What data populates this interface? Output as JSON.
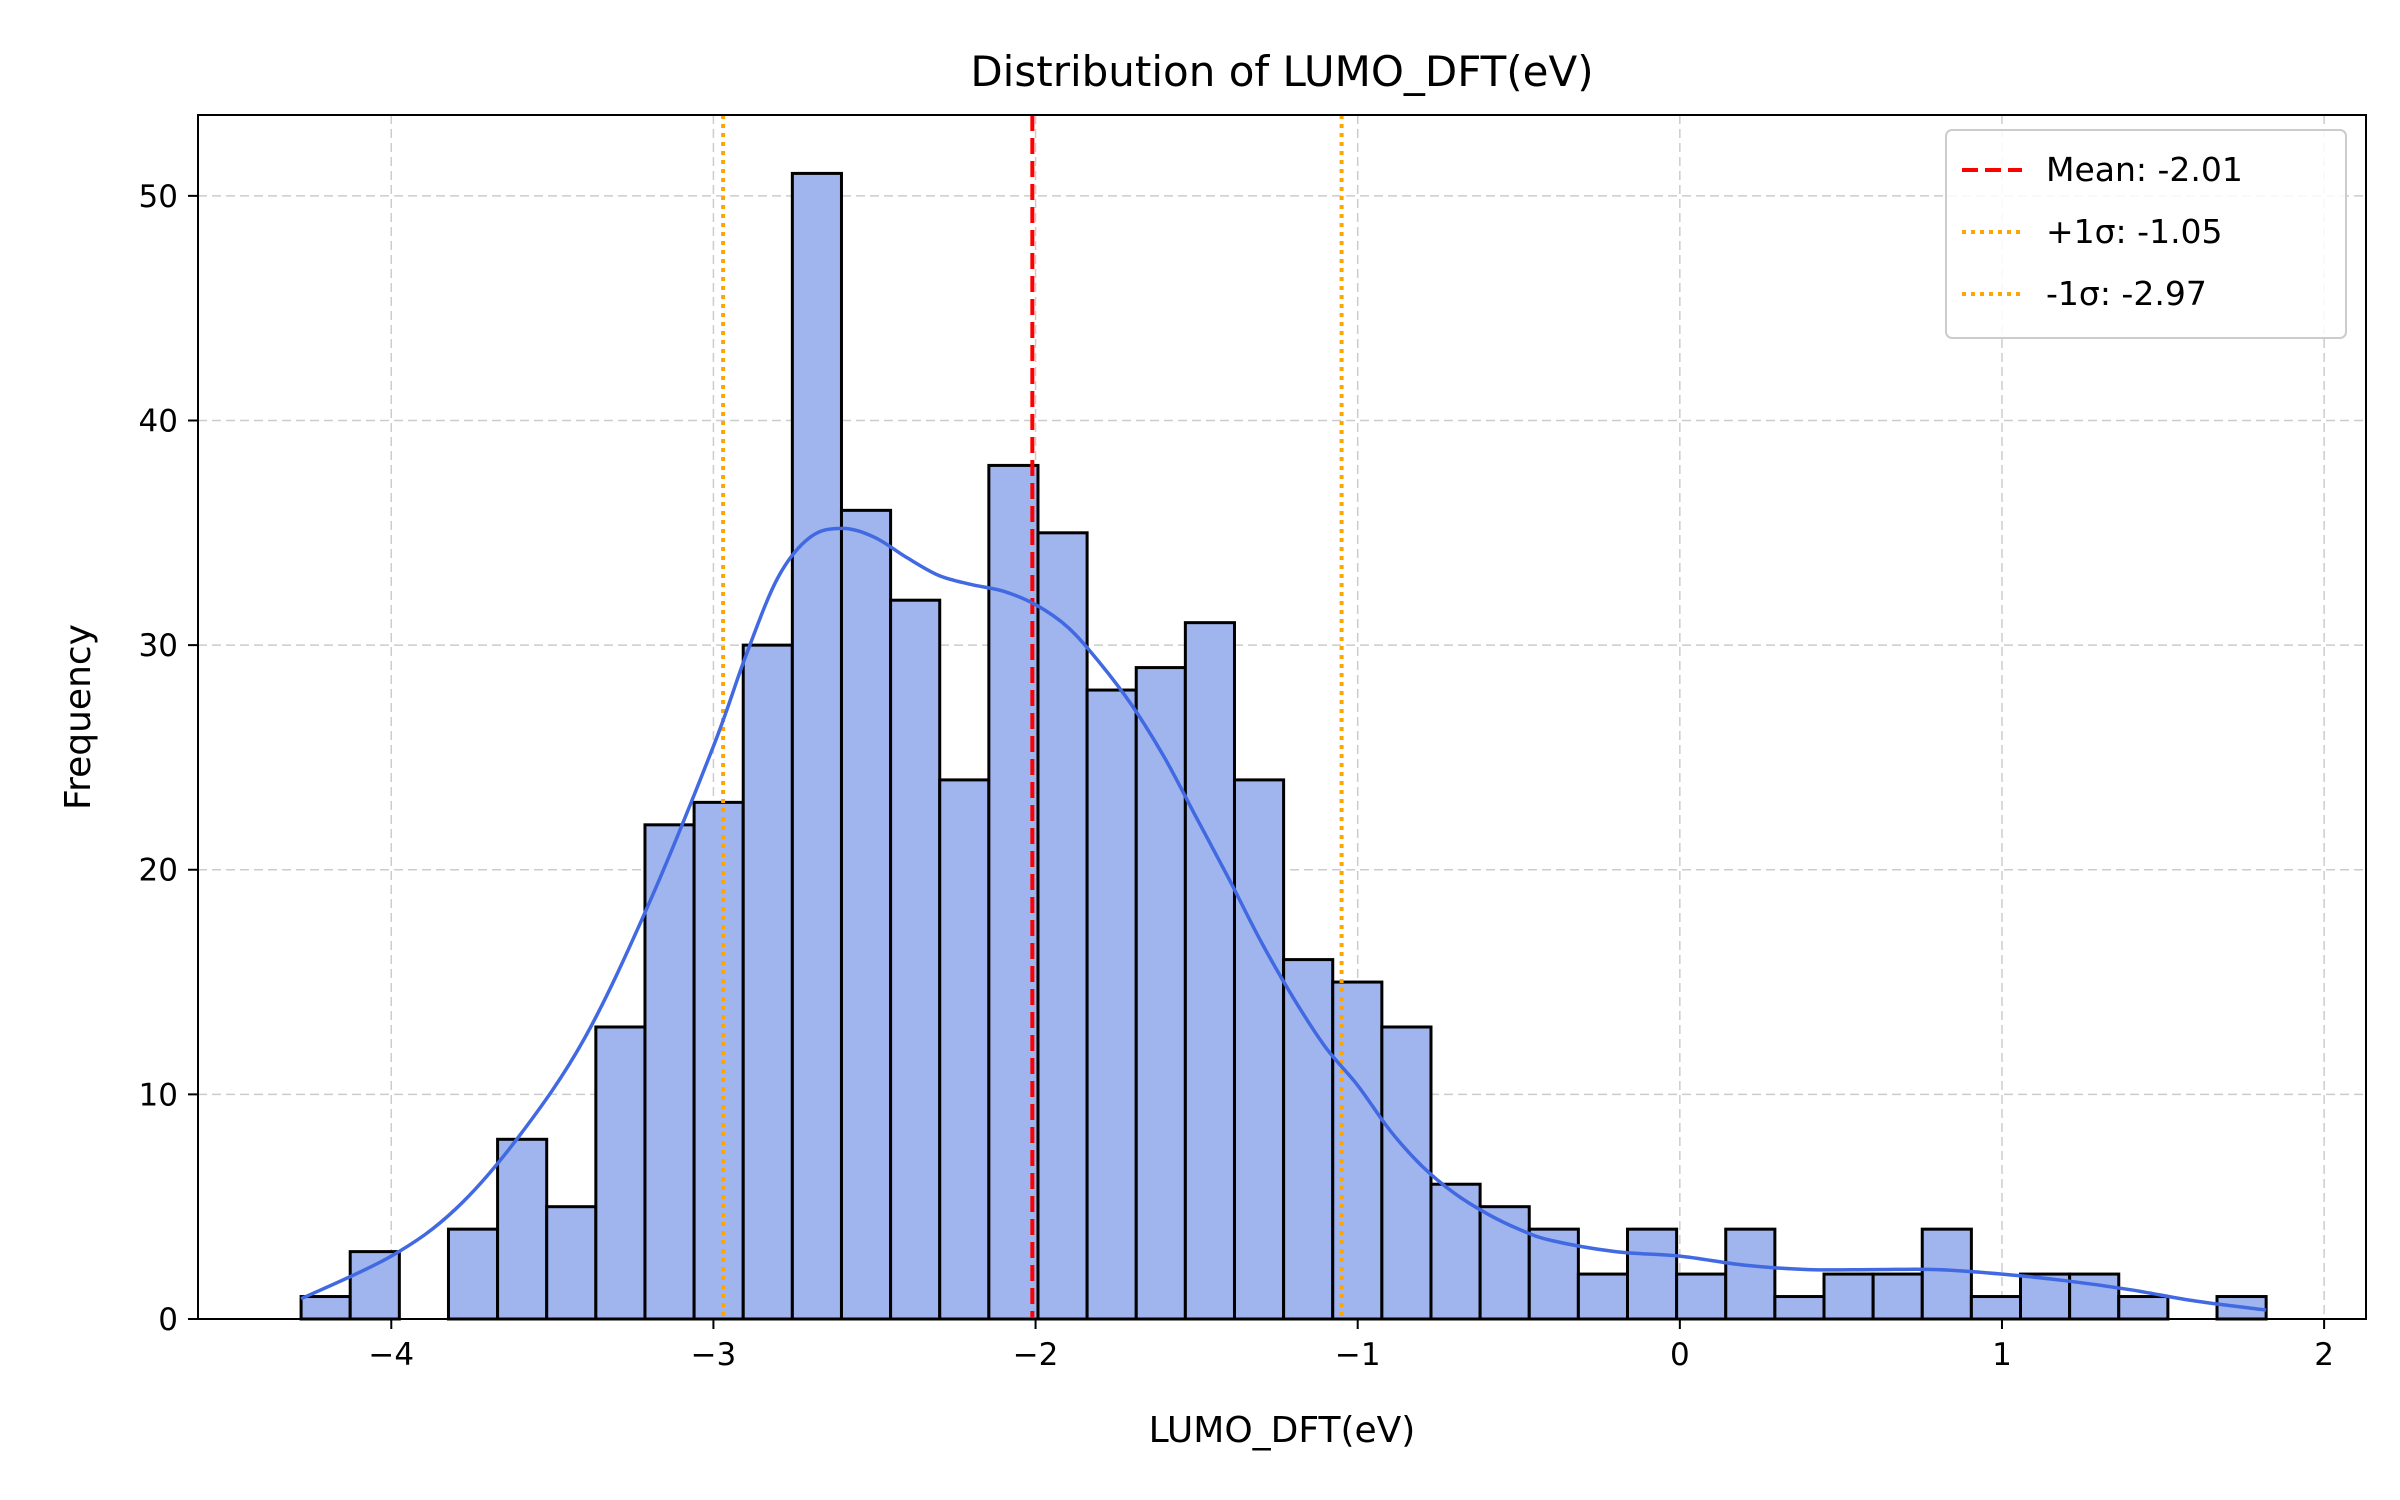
{
  "chart_data": {
    "type": "histogram",
    "title": "Distribution of LUMO_DFT(eV)",
    "xlabel": "LUMO_DFT(eV)",
    "ylabel": "Frequency",
    "xlim": [
      -4.6,
      2.13
    ],
    "ylim": [
      0,
      53.6
    ],
    "xticks": [
      -4,
      -3,
      -2,
      -1,
      0,
      1,
      2
    ],
    "xtick_labels": [
      "−4",
      "−3",
      "−2",
      "−1",
      "0",
      "1",
      "2"
    ],
    "yticks": [
      0,
      10,
      20,
      30,
      40,
      50
    ],
    "ytick_labels": [
      "0",
      "10",
      "20",
      "30",
      "40",
      "50"
    ],
    "grid": true,
    "bin_start": -4.28,
    "bin_width": 0.1525,
    "counts": [
      1,
      3,
      0,
      4,
      8,
      5,
      13,
      22,
      23,
      30,
      51,
      36,
      32,
      24,
      38,
      35,
      28,
      29,
      31,
      24,
      16,
      15,
      13,
      6,
      5,
      4,
      2,
      4,
      2,
      4,
      1,
      2,
      2,
      4,
      1,
      2,
      2,
      1,
      0,
      1
    ],
    "kde": {
      "x": [
        -4.28,
        -4.0,
        -3.8,
        -3.6,
        -3.4,
        -3.2,
        -3.0,
        -2.9,
        -2.8,
        -2.7,
        -2.6,
        -2.5,
        -2.4,
        -2.3,
        -2.2,
        -2.1,
        -2.0,
        -1.9,
        -1.8,
        -1.7,
        -1.6,
        -1.5,
        -1.4,
        -1.3,
        -1.2,
        -1.1,
        -1.0,
        -0.9,
        -0.8,
        -0.7,
        -0.6,
        -0.5,
        -0.4,
        -0.2,
        0.0,
        0.2,
        0.4,
        0.6,
        0.8,
        1.0,
        1.2,
        1.4,
        1.6,
        1.82
      ],
      "y": [
        0.9,
        2.8,
        4.9,
        8.2,
        12.5,
        18.5,
        25.5,
        29.5,
        33.0,
        34.8,
        35.2,
        34.8,
        33.9,
        33.1,
        32.7,
        32.4,
        31.8,
        30.8,
        29.2,
        27.3,
        25.0,
        22.3,
        19.6,
        16.8,
        14.3,
        12.1,
        10.4,
        8.4,
        6.8,
        5.6,
        4.7,
        4.0,
        3.5,
        3.0,
        2.8,
        2.4,
        2.2,
        2.2,
        2.2,
        2.0,
        1.7,
        1.3,
        0.8,
        0.4
      ]
    },
    "lines": [
      {
        "label": "Mean: -2.01",
        "x": -2.01,
        "color": "#ff0000",
        "style": "dashed"
      },
      {
        "label": "+1σ: -1.05",
        "x": -1.05,
        "color": "#ffa500",
        "style": "dotted"
      },
      {
        "label": "-1σ: -2.97",
        "x": -2.97,
        "color": "#ffa500",
        "style": "dotted"
      }
    ],
    "legend_position": "top-right",
    "colors": {
      "bar_fill": "#a0b4ee",
      "bar_edge": "#000000",
      "kde": "#4169e1",
      "grid": "#cccccc"
    }
  }
}
